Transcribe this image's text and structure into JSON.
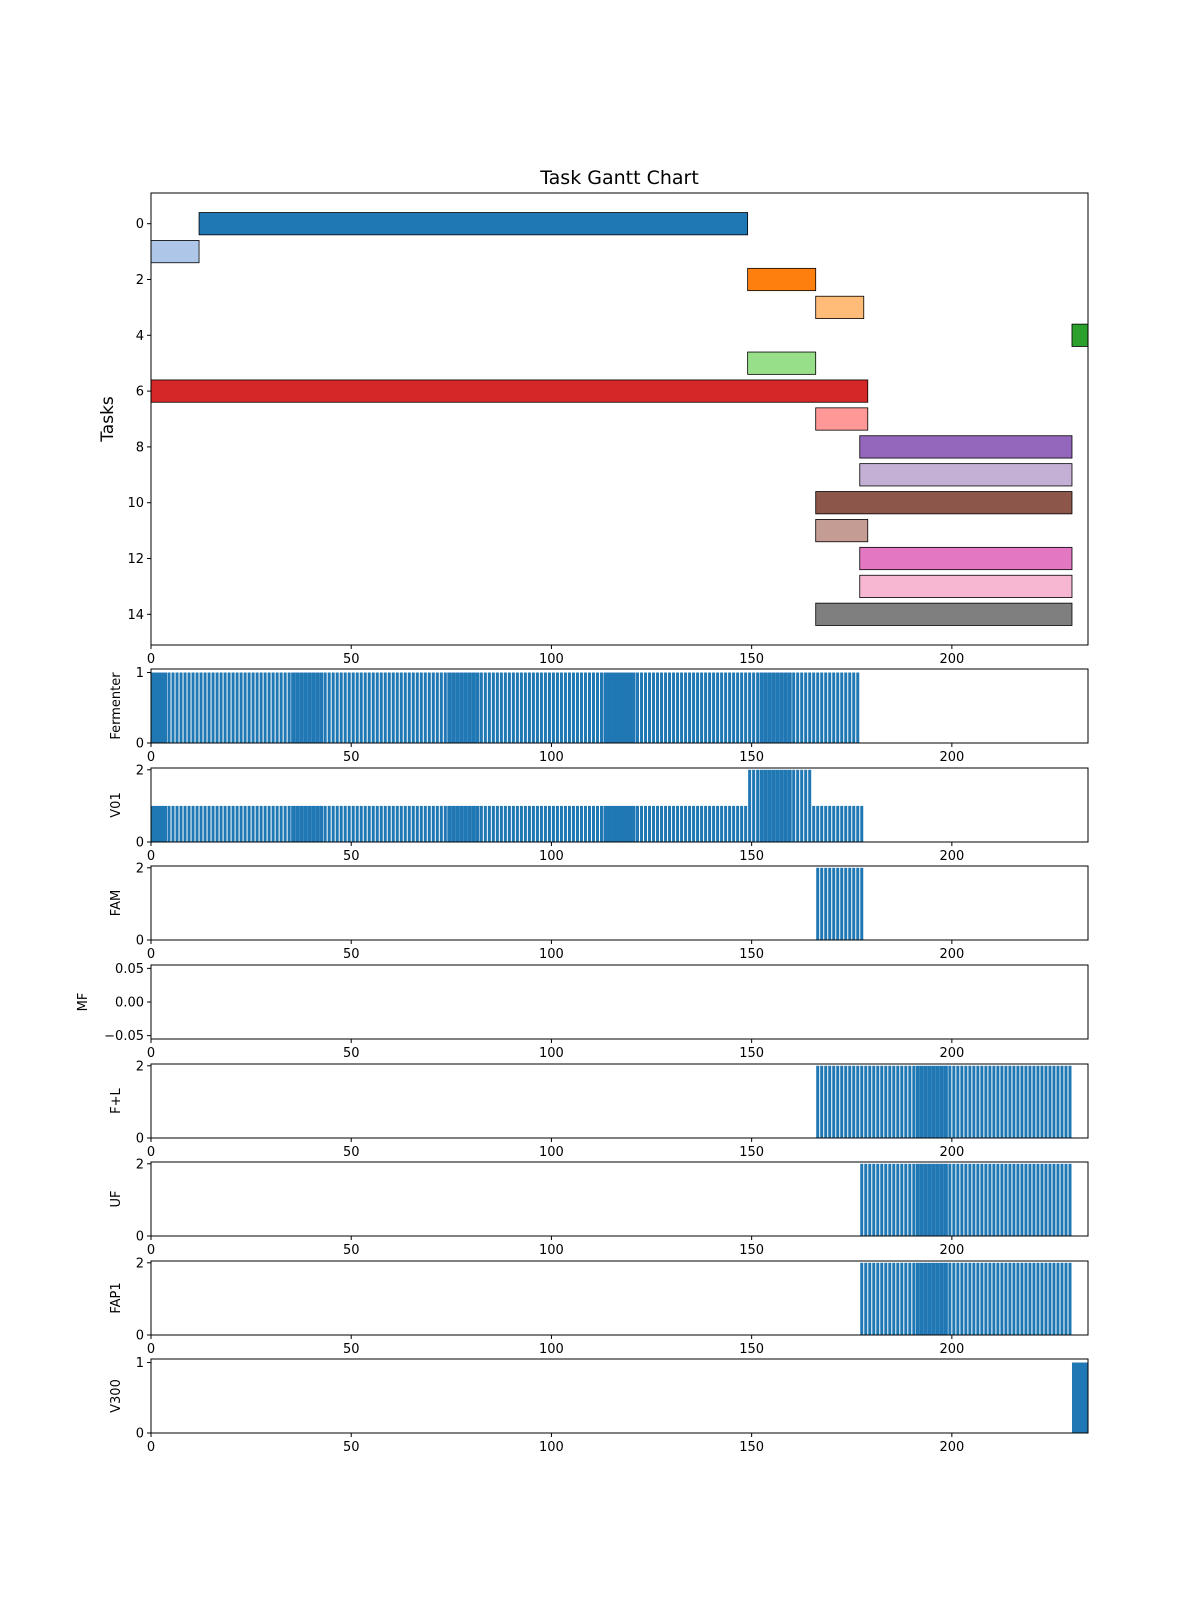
{
  "chart_data": [
    {
      "type": "bar",
      "orientation": "horizontal",
      "title": "Task Gantt Chart",
      "ylabel": "Tasks",
      "xlim": [
        0,
        234
      ],
      "ylim": [
        15.1,
        -1.1
      ],
      "xticks": [
        0,
        50,
        100,
        150,
        200
      ],
      "yticks": [
        0,
        2,
        4,
        6,
        8,
        10,
        12,
        14
      ],
      "tasks": [
        {
          "task": 0,
          "start": 12,
          "end": 149,
          "color": "#1f77b4"
        },
        {
          "task": 1,
          "start": 0,
          "end": 12,
          "color": "#aec7e8"
        },
        {
          "task": 2,
          "start": 149,
          "end": 166,
          "color": "#ff7f0e"
        },
        {
          "task": 3,
          "start": 166,
          "end": 178,
          "color": "#ffbb78"
        },
        {
          "task": 4,
          "start": 230,
          "end": 234,
          "color": "#2ca02c"
        },
        {
          "task": 5,
          "start": 149,
          "end": 166,
          "color": "#98df8a"
        },
        {
          "task": 6,
          "start": 0,
          "end": 179,
          "color": "#d62728"
        },
        {
          "task": 7,
          "start": 166,
          "end": 179,
          "color": "#ff9896"
        },
        {
          "task": 8,
          "start": 177,
          "end": 230,
          "color": "#9467bd"
        },
        {
          "task": 9,
          "start": 177,
          "end": 230,
          "color": "#c5b0d5"
        },
        {
          "task": 10,
          "start": 166,
          "end": 230,
          "color": "#8c564b"
        },
        {
          "task": 11,
          "start": 166,
          "end": 179,
          "color": "#c49c94"
        },
        {
          "task": 12,
          "start": 177,
          "end": 230,
          "color": "#e377c2"
        },
        {
          "task": 13,
          "start": 177,
          "end": 230,
          "color": "#f7b6d2"
        },
        {
          "task": 14,
          "start": 166,
          "end": 230,
          "color": "#7f7f7f"
        }
      ]
    },
    {
      "type": "bar",
      "ylabel": "Fermenter",
      "color": "#1f77b4",
      "xlim": [
        0,
        234
      ],
      "ylim": [
        0,
        1.05
      ],
      "xticks": [
        0,
        50,
        100,
        150,
        200
      ],
      "yticks": [
        0,
        1
      ],
      "segments": [
        {
          "start": 0,
          "end": 4,
          "value": 1,
          "solid": true
        },
        {
          "start": 4,
          "end": 35,
          "value": 1,
          "solid": false
        },
        {
          "start": 35,
          "end": 43,
          "value": 1,
          "solid": true
        },
        {
          "start": 43,
          "end": 74,
          "value": 1,
          "solid": false
        },
        {
          "start": 74,
          "end": 82,
          "value": 1,
          "solid": true
        },
        {
          "start": 82,
          "end": 113,
          "value": 1,
          "solid": false
        },
        {
          "start": 113,
          "end": 121,
          "value": 1,
          "solid": true
        },
        {
          "start": 121,
          "end": 152,
          "value": 1,
          "solid": false
        },
        {
          "start": 152,
          "end": 160,
          "value": 1,
          "solid": true
        },
        {
          "start": 160,
          "end": 177,
          "value": 1,
          "solid": false
        }
      ]
    },
    {
      "type": "bar",
      "ylabel": "V01",
      "color": "#1f77b4",
      "xlim": [
        0,
        234
      ],
      "ylim": [
        0,
        2.05
      ],
      "xticks": [
        0,
        50,
        100,
        150,
        200
      ],
      "yticks": [
        0,
        2
      ],
      "segments": [
        {
          "start": 0,
          "end": 4,
          "value": 1,
          "solid": true
        },
        {
          "start": 4,
          "end": 35,
          "value": 1,
          "solid": false
        },
        {
          "start": 35,
          "end": 43,
          "value": 1,
          "solid": true
        },
        {
          "start": 43,
          "end": 74,
          "value": 1,
          "solid": false
        },
        {
          "start": 74,
          "end": 82,
          "value": 1,
          "solid": true
        },
        {
          "start": 82,
          "end": 113,
          "value": 1,
          "solid": false
        },
        {
          "start": 113,
          "end": 121,
          "value": 1,
          "solid": true
        },
        {
          "start": 121,
          "end": 149,
          "value": 1,
          "solid": false
        },
        {
          "start": 149,
          "end": 152,
          "value": 2,
          "solid": false
        },
        {
          "start": 152,
          "end": 160,
          "value": 2,
          "solid": true
        },
        {
          "start": 160,
          "end": 165,
          "value": 2,
          "solid": false
        },
        {
          "start": 165,
          "end": 178,
          "value": 1,
          "solid": false
        }
      ]
    },
    {
      "type": "bar",
      "ylabel": "FAM",
      "color": "#1f77b4",
      "xlim": [
        0,
        234
      ],
      "ylim": [
        0,
        2.05
      ],
      "xticks": [
        0,
        50,
        100,
        150,
        200
      ],
      "yticks": [
        0,
        2
      ],
      "segments": [
        {
          "start": 166,
          "end": 178,
          "value": 2,
          "solid": false
        }
      ]
    },
    {
      "type": "bar",
      "ylabel": "MF",
      "color": "#1f77b4",
      "xlim": [
        0,
        234
      ],
      "ylim": [
        -0.055,
        0.055
      ],
      "xticks": [
        0,
        50,
        100,
        150,
        200
      ],
      "yticks": [
        -0.05,
        0.0,
        0.05
      ],
      "ytick_labels": [
        "−0.05",
        "0.00",
        "0.05"
      ],
      "segments": []
    },
    {
      "type": "bar",
      "ylabel": "F+L",
      "color": "#1f77b4",
      "xlim": [
        0,
        234
      ],
      "ylim": [
        0,
        2.05
      ],
      "xticks": [
        0,
        50,
        100,
        150,
        200
      ],
      "yticks": [
        0,
        2
      ],
      "segments": [
        {
          "start": 166,
          "end": 191,
          "value": 2,
          "solid": false
        },
        {
          "start": 191,
          "end": 199,
          "value": 2,
          "solid": true
        },
        {
          "start": 199,
          "end": 230,
          "value": 2,
          "solid": false
        }
      ]
    },
    {
      "type": "bar",
      "ylabel": "UF",
      "color": "#1f77b4",
      "xlim": [
        0,
        234
      ],
      "ylim": [
        0,
        2.05
      ],
      "xticks": [
        0,
        50,
        100,
        150,
        200
      ],
      "yticks": [
        0,
        2
      ],
      "segments": [
        {
          "start": 177,
          "end": 191,
          "value": 2,
          "solid": false
        },
        {
          "start": 191,
          "end": 199,
          "value": 2,
          "solid": true
        },
        {
          "start": 199,
          "end": 230,
          "value": 2,
          "solid": false
        }
      ]
    },
    {
      "type": "bar",
      "ylabel": "FAP1",
      "color": "#1f77b4",
      "xlim": [
        0,
        234
      ],
      "ylim": [
        0,
        2.05
      ],
      "xticks": [
        0,
        50,
        100,
        150,
        200
      ],
      "yticks": [
        0,
        2
      ],
      "segments": [
        {
          "start": 177,
          "end": 191,
          "value": 2,
          "solid": false
        },
        {
          "start": 191,
          "end": 199,
          "value": 2,
          "solid": true
        },
        {
          "start": 199,
          "end": 230,
          "value": 2,
          "solid": false
        }
      ]
    },
    {
      "type": "bar",
      "ylabel": "V300",
      "color": "#1f77b4",
      "xlim": [
        0,
        234
      ],
      "ylim": [
        0,
        1.05
      ],
      "xticks": [
        0,
        50,
        100,
        150,
        200
      ],
      "yticks": [
        0,
        1
      ],
      "segments": [
        {
          "start": 230,
          "end": 234,
          "value": 1,
          "solid": true
        }
      ]
    }
  ]
}
